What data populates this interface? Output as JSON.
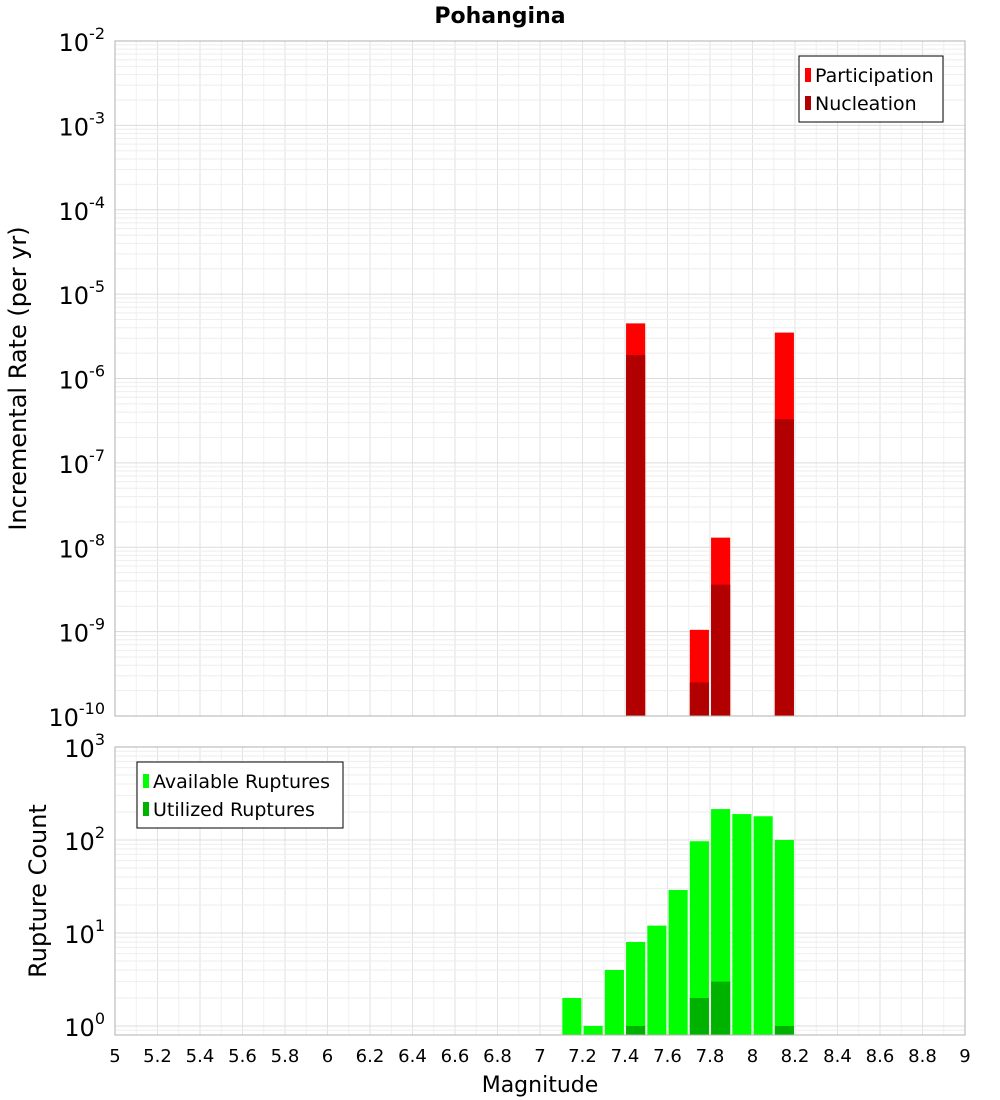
{
  "chart_data": [
    {
      "type": "bar",
      "title": "Pohangina",
      "xlabel": "",
      "ylabel": "Incremental Rate (per yr)",
      "y_scale": "log",
      "ylim": [
        1e-10,
        0.01
      ],
      "xlim": [
        5,
        9
      ],
      "y_ticks": [
        "10^-10",
        "10^-9",
        "10^-8",
        "10^-7",
        "10^-6",
        "10^-5",
        "10^-4",
        "10^-3",
        "10^-2"
      ],
      "grid": true,
      "legend_position": "top-right",
      "series": [
        {
          "name": "Participation",
          "color": "#ff0000",
          "x": [
            7.45,
            7.75,
            7.85,
            8.15
          ],
          "values": [
            4.5e-06,
            1.05e-09,
            1.3e-08,
            3.5e-06
          ]
        },
        {
          "name": "Nucleation",
          "color": "#b20000",
          "x": [
            7.45,
            7.75,
            7.85,
            8.15
          ],
          "values": [
            1.9e-06,
            2.5e-10,
            3.6e-09,
            3.3e-07
          ]
        }
      ]
    },
    {
      "type": "bar",
      "title": "",
      "xlabel": "Magnitude",
      "ylabel": "Rupture Count",
      "y_scale": "log",
      "ylim": [
        0.8,
        1000
      ],
      "xlim": [
        5,
        9
      ],
      "y_ticks": [
        "10^0",
        "10^1",
        "10^2",
        "10^3"
      ],
      "x_ticks": [
        "5",
        "5.2",
        "5.4",
        "5.6",
        "5.8",
        "6",
        "6.2",
        "6.4",
        "6.6",
        "6.8",
        "7",
        "7.2",
        "7.4",
        "7.6",
        "7.8",
        "8",
        "8.2",
        "8.4",
        "8.6",
        "8.8",
        "9"
      ],
      "grid": true,
      "legend_position": "top-left",
      "series": [
        {
          "name": "Available Ruptures",
          "color": "#00ff00",
          "x": [
            7.15,
            7.25,
            7.35,
            7.45,
            7.55,
            7.65,
            7.75,
            7.85,
            7.95,
            8.05,
            8.15
          ],
          "values": [
            2,
            1,
            4,
            8,
            12,
            29,
            97,
            215,
            190,
            180,
            100
          ]
        },
        {
          "name": "Utilized Ruptures",
          "color": "#00b200",
          "x": [
            7.45,
            7.75,
            7.85,
            8.15
          ],
          "values": [
            1,
            2,
            3,
            1
          ]
        }
      ]
    }
  ]
}
